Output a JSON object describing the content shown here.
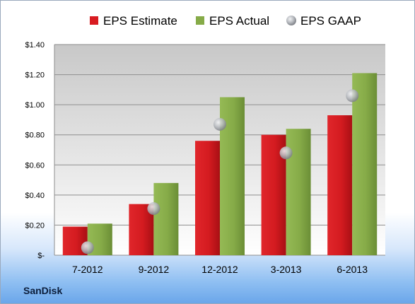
{
  "company": "SanDisk",
  "colors": {
    "estimate": "#d81b21",
    "actual": "#8ab14c",
    "gaap": "#b5b8bd"
  },
  "chart_data": {
    "type": "bar",
    "title": "",
    "xlabel": "",
    "ylabel": "",
    "categories": [
      "7-2012",
      "9-2012",
      "12-2012",
      "3-2013",
      "6-2013"
    ],
    "series": [
      {
        "name": "EPS Estimate",
        "kind": "bar",
        "values": [
          0.19,
          0.34,
          0.76,
          0.8,
          0.93
        ]
      },
      {
        "name": "EPS Actual",
        "kind": "bar",
        "values": [
          0.21,
          0.48,
          1.05,
          0.84,
          1.21
        ]
      },
      {
        "name": "EPS GAAP",
        "kind": "marker",
        "values": [
          0.05,
          0.31,
          0.87,
          0.68,
          1.06
        ]
      }
    ],
    "ylim": [
      0,
      1.4
    ],
    "yticks": [
      0,
      0.2,
      0.4,
      0.6,
      0.8,
      1.0,
      1.2,
      1.4
    ],
    "ytick_labels": [
      "$-",
      "$0.20",
      "$0.40",
      "$0.60",
      "$0.80",
      "$1.00",
      "$1.20",
      "$1.40"
    ],
    "grid": true,
    "legend_position": "top"
  }
}
